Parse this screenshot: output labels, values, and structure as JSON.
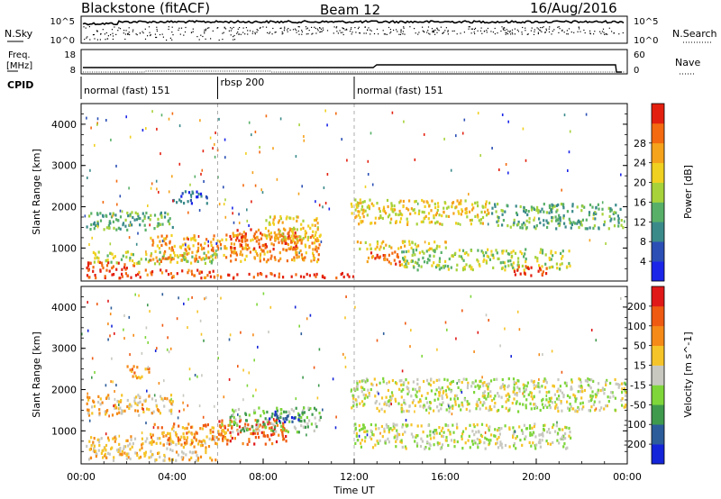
{
  "header": {
    "station": "Blackstone (fitACF)",
    "beam": "Beam 12",
    "date": "16/Aug/2016"
  },
  "top_panel": {
    "left_label": "N.Sky",
    "right_label": "N.Search",
    "left_ticks": [
      "10^5",
      "10^0"
    ],
    "right_ticks": [
      "10^5",
      "10^0"
    ]
  },
  "freq_panel": {
    "left_label_1": "Freq.",
    "left_label_2": "[MHz]",
    "right_label": "Nave",
    "left_ticks": [
      "18",
      "8"
    ],
    "right_ticks": [
      "60",
      "0"
    ]
  },
  "cpid": {
    "label": "CPID",
    "segments": [
      {
        "name": "normal (fast) 151",
        "start_hour": 0,
        "end_hour": 6
      },
      {
        "name": "rbsp 200",
        "start_hour": 6,
        "end_hour": 12
      },
      {
        "name": "normal (fast) 151",
        "start_hour": 12,
        "end_hour": 24
      }
    ]
  },
  "chart_data": [
    {
      "type": "heatmap",
      "name": "power",
      "ylabel": "Slant Range [km]",
      "yticks": [
        "1000",
        "2000",
        "3000",
        "4000"
      ],
      "ylim": [
        200,
        4500
      ],
      "xlim": [
        0,
        24
      ],
      "colorbar": {
        "label": "Power [dB]",
        "ticks": [
          "4",
          "8",
          "12",
          "16",
          "20",
          "24",
          "28"
        ],
        "colors": [
          "#1a25e8",
          "#2b4fb5",
          "#3b8a8a",
          "#58b068",
          "#a7d23a",
          "#f0d020",
          "#f5a21c",
          "#f36a10",
          "#e3200f"
        ]
      },
      "bands": [
        {
          "x0": 0.2,
          "x1": 2.5,
          "y0": 300,
          "y1": 700,
          "level": 8
        },
        {
          "x0": 2.5,
          "x1": 6,
          "y0": 300,
          "y1": 500,
          "level": 7
        },
        {
          "x0": 6,
          "x1": 12,
          "y0": 300,
          "y1": 420,
          "level": 8
        },
        {
          "x0": 0.5,
          "x1": 6,
          "y0": 650,
          "y1": 950,
          "level": 4
        },
        {
          "x0": 3,
          "x1": 10.5,
          "y0": 700,
          "y1": 1350,
          "level": 6
        },
        {
          "x0": 6.5,
          "x1": 9.5,
          "y0": 1000,
          "y1": 1500,
          "level": 7
        },
        {
          "x0": 8,
          "x1": 10.5,
          "y0": 1200,
          "y1": 1800,
          "level": 5
        },
        {
          "x0": 0.2,
          "x1": 4,
          "y0": 1450,
          "y1": 1900,
          "level": 3
        },
        {
          "x0": 4,
          "x1": 5.5,
          "y0": 2100,
          "y1": 2400,
          "level": 1
        },
        {
          "x0": 12,
          "x1": 16,
          "y0": 1000,
          "y1": 1200,
          "level": 5
        },
        {
          "x0": 12.5,
          "x1": 14,
          "y0": 600,
          "y1": 950,
          "level": 7
        },
        {
          "x0": 14,
          "x1": 21.5,
          "y0": 500,
          "y1": 1000,
          "level": 4
        },
        {
          "x0": 19,
          "x1": 20.5,
          "y0": 350,
          "y1": 600,
          "level": 8
        },
        {
          "x0": 11.8,
          "x1": 18,
          "y0": 1600,
          "y1": 2200,
          "level": 5
        },
        {
          "x0": 18,
          "x1": 23.8,
          "y0": 1500,
          "y1": 2100,
          "level": 3
        }
      ]
    },
    {
      "type": "heatmap",
      "name": "velocity",
      "ylabel": "Slant Range [km]",
      "xlabel": "Time UT",
      "xticks": [
        "00:00",
        "04:00",
        "08:00",
        "12:00",
        "16:00",
        "20:00",
        "00:00"
      ],
      "yticks": [
        "1000",
        "2000",
        "3000",
        "4000"
      ],
      "ylim": [
        200,
        4500
      ],
      "xlim": [
        0,
        24
      ],
      "colorbar": {
        "label": "Velocity [m s^-1]",
        "ticks": [
          "200",
          "100",
          "50",
          "15",
          "-15",
          "-50",
          "-100",
          "-200"
        ],
        "colors": [
          "#1424d8",
          "#2c5c9a",
          "#3f9a4e",
          "#7ed63a",
          "#c8c8c0",
          "#f5c428",
          "#f58a18",
          "#ef5a12",
          "#e01818"
        ]
      },
      "bands": [
        {
          "x0": 0.2,
          "x1": 6,
          "y0": 300,
          "y1": 900,
          "level": 5
        },
        {
          "x0": 3,
          "x1": 6.5,
          "y0": 700,
          "y1": 1200,
          "level": 6
        },
        {
          "x0": 6,
          "x1": 9,
          "y0": 700,
          "y1": 1300,
          "level": 7
        },
        {
          "x0": 6.5,
          "x1": 10.5,
          "y0": 1000,
          "y1": 1600,
          "level": 3
        },
        {
          "x0": 8,
          "x1": 9.8,
          "y0": 1200,
          "y1": 1500,
          "level": 1
        },
        {
          "x0": 0.2,
          "x1": 4,
          "y0": 1400,
          "y1": 1900,
          "level": 5
        },
        {
          "x0": 2,
          "x1": 3,
          "y0": 2300,
          "y1": 2600,
          "level": 6
        },
        {
          "x0": 11.8,
          "x1": 24,
          "y0": 1500,
          "y1": 2300,
          "level": 4
        },
        {
          "x0": 12,
          "x1": 21.5,
          "y0": 600,
          "y1": 1200,
          "level": 4
        }
      ]
    }
  ]
}
